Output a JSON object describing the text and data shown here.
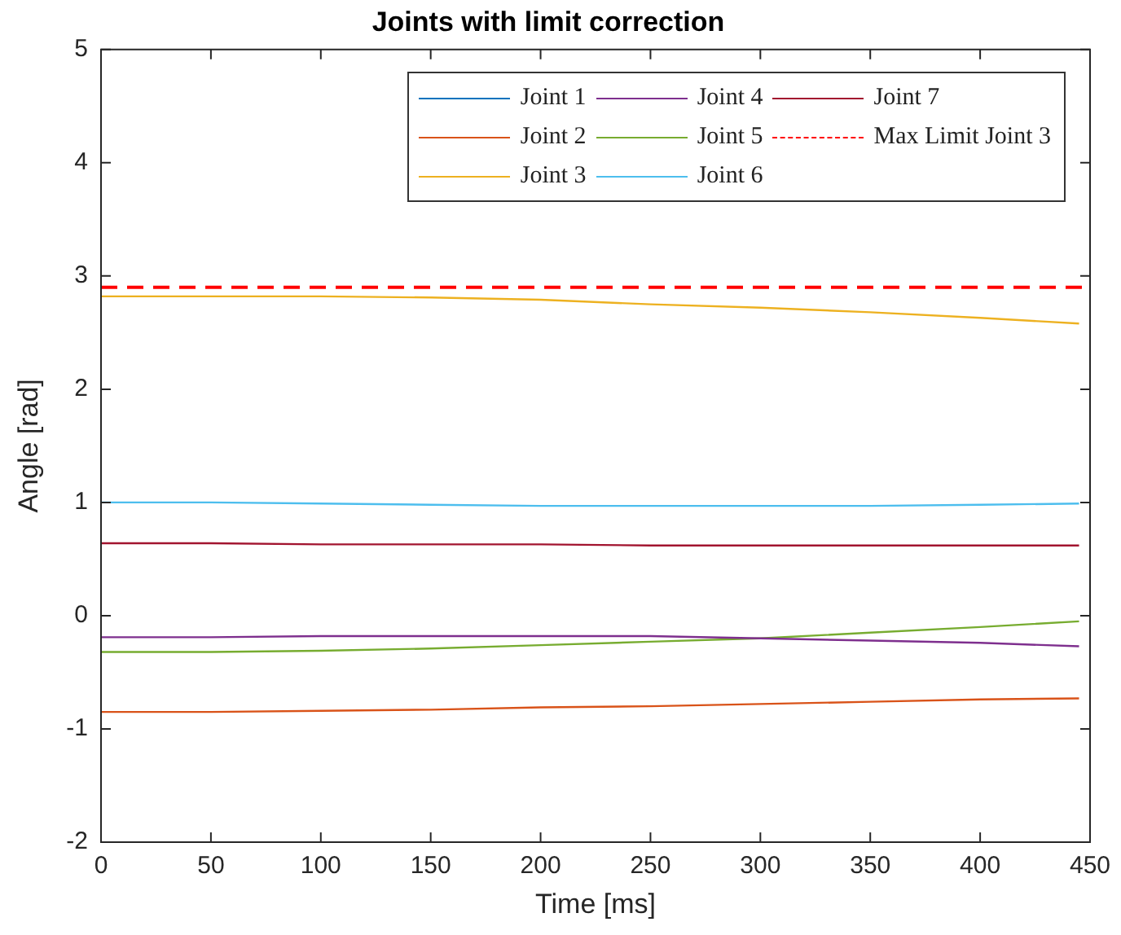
{
  "chart_data": {
    "type": "line",
    "title": "Joints with limit correction",
    "xlabel": "Time [ms]",
    "ylabel": "Angle [rad]",
    "xlim": [
      0,
      450
    ],
    "xticks": [
      0,
      50,
      100,
      150,
      200,
      250,
      300,
      350,
      400,
      450
    ],
    "ylim": [
      -2,
      5
    ],
    "yticks": [
      -2,
      -1,
      0,
      1,
      2,
      3,
      4,
      5
    ],
    "grid": false,
    "legend": "top right",
    "line_style": "solid",
    "marker": "none",
    "series": [
      {
        "name": "Joint 1",
        "color": "#0072bd"
      },
      {
        "name": "Joint 2",
        "color": "#d95319",
        "x": [
          0,
          50,
          100,
          150,
          200,
          250,
          300,
          350,
          400,
          445
        ],
        "values": [
          -0.85,
          -0.85,
          -0.84,
          -0.83,
          -0.81,
          -0.8,
          -0.78,
          -0.76,
          -0.74,
          -0.73
        ]
      },
      {
        "name": "Joint 3",
        "color": "#edb120",
        "x": [
          0,
          50,
          100,
          150,
          200,
          250,
          300,
          350,
          400,
          445
        ],
        "values": [
          2.82,
          2.82,
          2.82,
          2.81,
          2.79,
          2.75,
          2.72,
          2.68,
          2.63,
          2.58
        ]
      },
      {
        "name": "Joint 4",
        "color": "#7e2f8e",
        "x": [
          0,
          50,
          100,
          150,
          200,
          250,
          300,
          350,
          400,
          445
        ],
        "values": [
          -0.19,
          -0.19,
          -0.18,
          -0.18,
          -0.18,
          -0.18,
          -0.2,
          -0.22,
          -0.24,
          -0.27
        ]
      },
      {
        "name": "Joint 5",
        "color": "#77ac30",
        "x": [
          0,
          50,
          100,
          150,
          200,
          250,
          300,
          350,
          400,
          445
        ],
        "values": [
          -0.32,
          -0.32,
          -0.31,
          -0.29,
          -0.26,
          -0.23,
          -0.2,
          -0.15,
          -0.1,
          -0.05
        ]
      },
      {
        "name": "Joint 6",
        "color": "#4dbeee",
        "x": [
          0,
          50,
          100,
          150,
          200,
          250,
          300,
          350,
          400,
          445
        ],
        "values": [
          1.0,
          1.0,
          0.99,
          0.98,
          0.97,
          0.97,
          0.97,
          0.97,
          0.98,
          0.99
        ]
      },
      {
        "name": "Joint 7",
        "color": "#a2142f",
        "x": [
          0,
          50,
          100,
          150,
          200,
          250,
          300,
          350,
          400,
          445
        ],
        "values": [
          0.64,
          0.64,
          0.63,
          0.63,
          0.63,
          0.62,
          0.62,
          0.62,
          0.62,
          0.62
        ]
      }
    ],
    "ref_lines": [
      {
        "axis": "y",
        "value": 2.9,
        "label": "Max Limit Joint 3",
        "color": "#ff0000",
        "line_style": "dashed"
      }
    ]
  }
}
